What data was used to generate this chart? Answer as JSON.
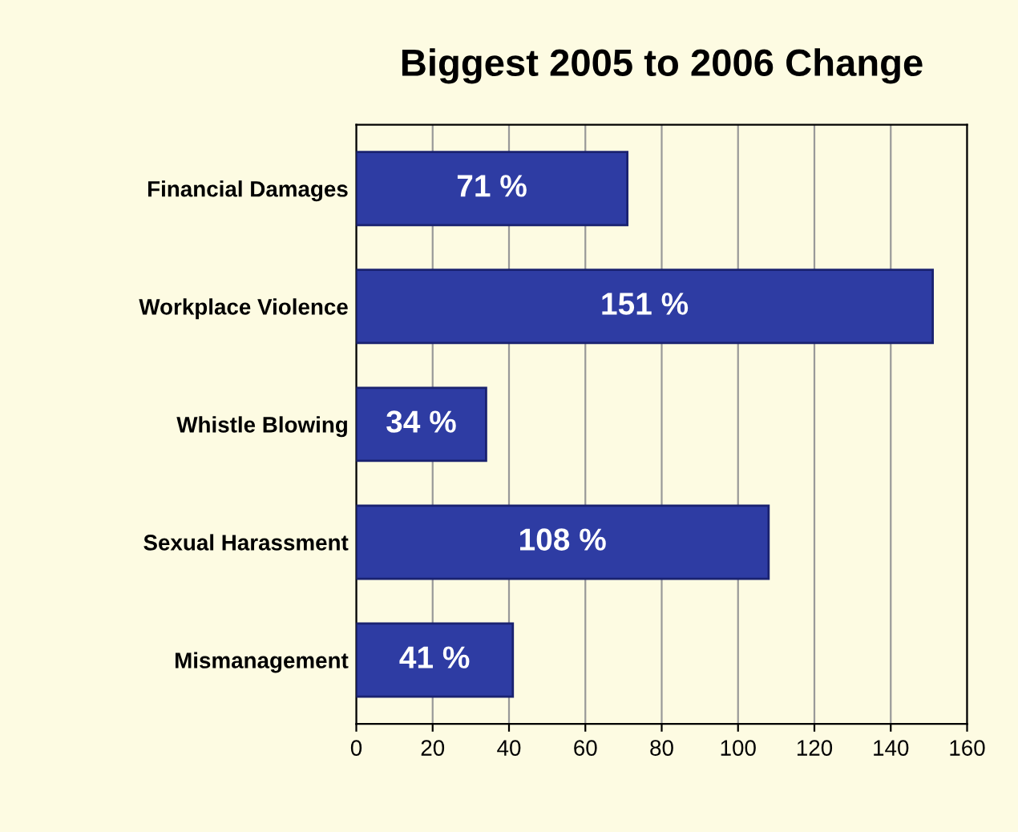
{
  "chart_data": {
    "type": "bar",
    "orientation": "horizontal",
    "title": "Biggest 2005 to 2006 Change",
    "categories": [
      "Financial Damages",
      "Workplace Violence",
      "Whistle Blowing",
      "Sexual Harassment",
      "Mismanagement"
    ],
    "values": [
      71,
      151,
      34,
      108,
      41
    ],
    "value_labels": [
      "71 %",
      "151 %",
      "34 %",
      "108 %",
      "41 %"
    ],
    "color": "#2e3ca3",
    "xlim": [
      0,
      160
    ],
    "xticks": [
      0,
      20,
      40,
      60,
      80,
      100,
      120,
      140,
      160
    ],
    "grid": "x",
    "legend": false
  }
}
